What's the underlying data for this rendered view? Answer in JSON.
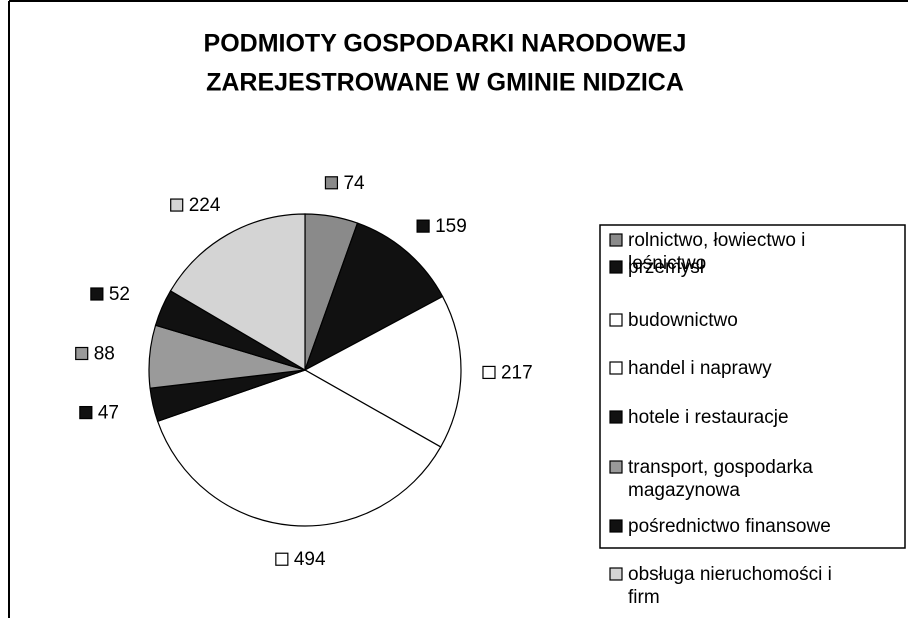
{
  "chart_data": {
    "type": "pie",
    "title": [
      "PODMIOTY GOSPODARKI NARODOWEJ",
      "ZAREJESTROWANE W GMINIE NIDZICA"
    ],
    "categories": [
      "rolnictwo, łowiectwo i leśnictwo",
      "przemysł",
      "budownictwo",
      "handel i naprawy",
      "hotele i restauracje",
      "transport, gospodarka magazynowa",
      "pośrednictwo finansowe",
      "obsługa nieruchomości i firm"
    ],
    "values": [
      74,
      159,
      217,
      494,
      47,
      88,
      52,
      224
    ],
    "colors": [
      "#8a8a8a",
      "#111111",
      "#ffffff",
      "#ffffff",
      "#111111",
      "#9a9a9a",
      "#111111",
      "#d4d4d4"
    ],
    "legend": "right"
  }
}
